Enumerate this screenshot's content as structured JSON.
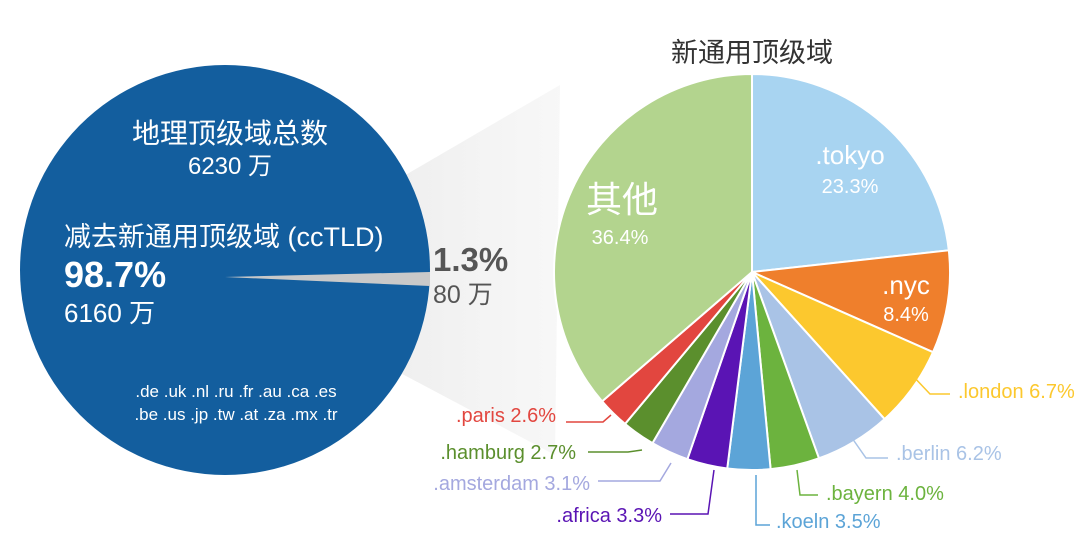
{
  "chart_data": [
    {
      "type": "pie",
      "subtype": "single-circle-summary",
      "color": "#135e9e",
      "title": "地理顶级域总数",
      "total": "6230 万",
      "cctld_label": "减去新通用顶级域 (ccTLD)",
      "cctld_percent": "98.7%",
      "cctld_count": "6160 万",
      "cctld_list_line1": ".de .uk .nl .ru .fr .au .ca .es",
      "cctld_list_line2": ".be .us .jp .tw .at .za .mx .tr",
      "gtld_percent": "1.3%",
      "gtld_count": "80 万",
      "values": [
        {
          "label": "ccTLD",
          "value": 98.7
        },
        {
          "label": "新通用顶级域",
          "value": 1.3
        }
      ]
    },
    {
      "type": "pie",
      "title": "新通用顶级域",
      "start": "12 o'clock, clockwise",
      "slices": [
        {
          "label": ".tokyo",
          "value": 23.3,
          "text": "23.3%",
          "color": "#a8d4f1",
          "label_inside": true
        },
        {
          "label": ".nyc",
          "value": 8.4,
          "text": "8.4%",
          "color": "#ef7f2c",
          "label_inside": true
        },
        {
          "label": ".london",
          "value": 6.7,
          "text": ".london 6.7%",
          "color": "#fcc82e"
        },
        {
          "label": ".berlin",
          "value": 6.2,
          "text": ".berlin 6.2%",
          "color": "#a9c3e6"
        },
        {
          "label": ".bayern",
          "value": 4.0,
          "text": ".bayern 4.0%",
          "color": "#6cb33e"
        },
        {
          "label": ".koeln",
          "value": 3.5,
          "text": ".koeln 3.5%",
          "color": "#5ca4d7"
        },
        {
          "label": ".africa",
          "value": 3.3,
          "text": ".africa 3.3%",
          "color": "#5a14b4"
        },
        {
          "label": ".amsterdam",
          "value": 3.1,
          "text": ".amsterdam 3.1%",
          "color": "#a4a8df"
        },
        {
          "label": ".hamburg",
          "value": 2.7,
          "text": ".hamburg 2.7%",
          "color": "#5b8f2d"
        },
        {
          "label": ".paris",
          "value": 2.6,
          "text": ".paris 2.6%",
          "color": "#e2463f"
        },
        {
          "label": "其他",
          "value": 36.4,
          "text": "36.4%",
          "color": "#b3d48e",
          "label_inside": true
        }
      ]
    }
  ]
}
